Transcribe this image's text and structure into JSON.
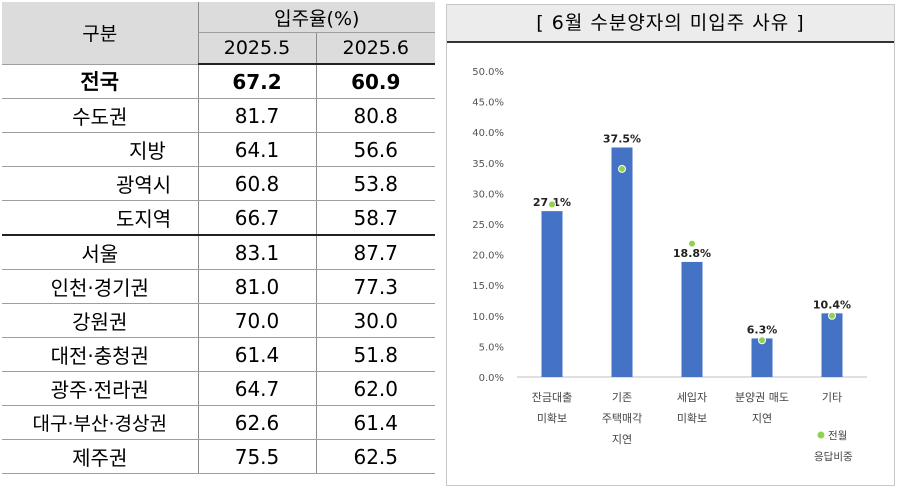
{
  "table": {
    "header": {
      "gubun": "구분",
      "rate_title": "입주율(%)",
      "col1": "2025.5",
      "col2": "2025.6"
    },
    "rows": [
      {
        "label": "전국",
        "v1": "67.2",
        "v2": "60.9"
      },
      {
        "label": "수도권",
        "v1": "81.7",
        "v2": "80.8"
      },
      {
        "label": "지방",
        "v1": "64.1",
        "v2": "56.6"
      },
      {
        "label": "광역시",
        "v1": "60.8",
        "v2": "53.8"
      },
      {
        "label": "도지역",
        "v1": "66.7",
        "v2": "58.7"
      },
      {
        "label": "서울",
        "v1": "83.1",
        "v2": "87.7"
      },
      {
        "label": "인천·경기권",
        "v1": "81.0",
        "v2": "77.3"
      },
      {
        "label": "강원권",
        "v1": "70.0",
        "v2": "30.0"
      },
      {
        "label": "대전·충청권",
        "v1": "61.4",
        "v2": "51.8"
      },
      {
        "label": "광주·전라권",
        "v1": "64.7",
        "v2": "62.0"
      },
      {
        "label": "대구·부산·경상권",
        "v1": "62.6",
        "v2": "61.4"
      },
      {
        "label": "제주권",
        "v1": "75.5",
        "v2": "62.5"
      }
    ]
  },
  "chart_data": {
    "type": "bar",
    "title": "[ 6월 수분양자의 미입주 사유 ]",
    "categories": [
      [
        "잔금대출",
        "미확보"
      ],
      [
        "기존",
        "주택매각",
        "지연"
      ],
      [
        "세입자",
        "미확보"
      ],
      [
        "분양권 매도",
        "지연"
      ],
      [
        "기타"
      ]
    ],
    "series": [
      {
        "type": "bar",
        "values": [
          27.1,
          37.5,
          18.8,
          6.3,
          10.4
        ],
        "labels": [
          "27.1%",
          "37.5%",
          "18.8%",
          "6.3%",
          "10.4%"
        ]
      },
      {
        "type": "marker",
        "name": "전월 응답비중",
        "values": [
          28.2,
          34.0,
          21.8,
          6.0,
          10.0
        ]
      }
    ],
    "y_ticks": [
      "0.0%",
      "5.0%",
      "10.0%",
      "15.0%",
      "20.0%",
      "25.0%",
      "30.0%",
      "35.0%",
      "40.0%",
      "45.0%",
      "50.0%"
    ],
    "ylim": [
      0,
      50
    ],
    "legend": {
      "position": "bottom-right",
      "lines": [
        "전월",
        "응답비중"
      ]
    },
    "colors": {
      "bar": "#4472C4",
      "marker": "#92D050",
      "title_bg": "#ECECEC"
    }
  }
}
